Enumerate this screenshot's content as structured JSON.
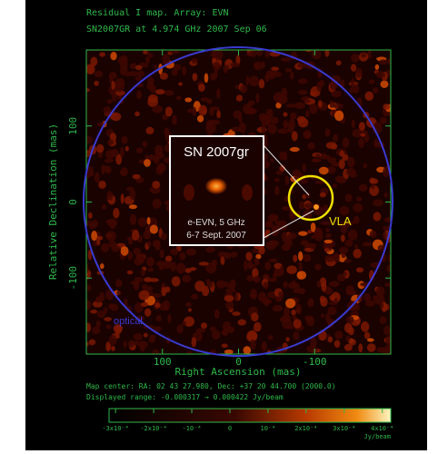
{
  "chart_data": {
    "type": "image",
    "title": "Residual I map.  Array:  EVN",
    "subtitle": "SN2007GR at 4.974 GHz 2007 Sep 06",
    "xlabel": "Right Ascension  (mas)",
    "ylabel": "Relative Declination  (mas)",
    "xlim": [
      200,
      -200
    ],
    "ylim": [
      -200,
      200
    ],
    "xticks": [
      100,
      0,
      -100
    ],
    "yticks": [
      -100,
      0,
      100
    ],
    "annotations": {
      "inset_title": "SN 2007gr",
      "inset_line1": "e-EVN, 5 GHz",
      "inset_line2": "6-7 Sept. 2007",
      "vla": "VLA",
      "optical": "optical"
    },
    "map_center": "Map center:  RA: 02 43 27.980,  Dec: +37 20 44.700 (2000.0)",
    "displayed_range": "Displayed range: -0.000317 → 0.000422 Jy/beam",
    "colorbar": {
      "clim": [
        -0.000317,
        0.000422
      ],
      "unit": "Jy/beam",
      "ticks": [
        {
          "value": -0.0003,
          "label": "-3x10⁻⁴"
        },
        {
          "value": -0.0002,
          "label": "-2x10⁻⁴"
        },
        {
          "value": -0.0001,
          "label": "-10⁻⁴"
        },
        0,
        {
          "value": 0.0001,
          "label": "10⁻⁴"
        },
        {
          "value": 0.0002,
          "label": "2x10⁻⁴"
        },
        {
          "value": 0.0003,
          "label": "3x10⁻⁴"
        },
        {
          "value": 0.0004,
          "label": "4x10⁻⁴"
        }
      ]
    }
  }
}
